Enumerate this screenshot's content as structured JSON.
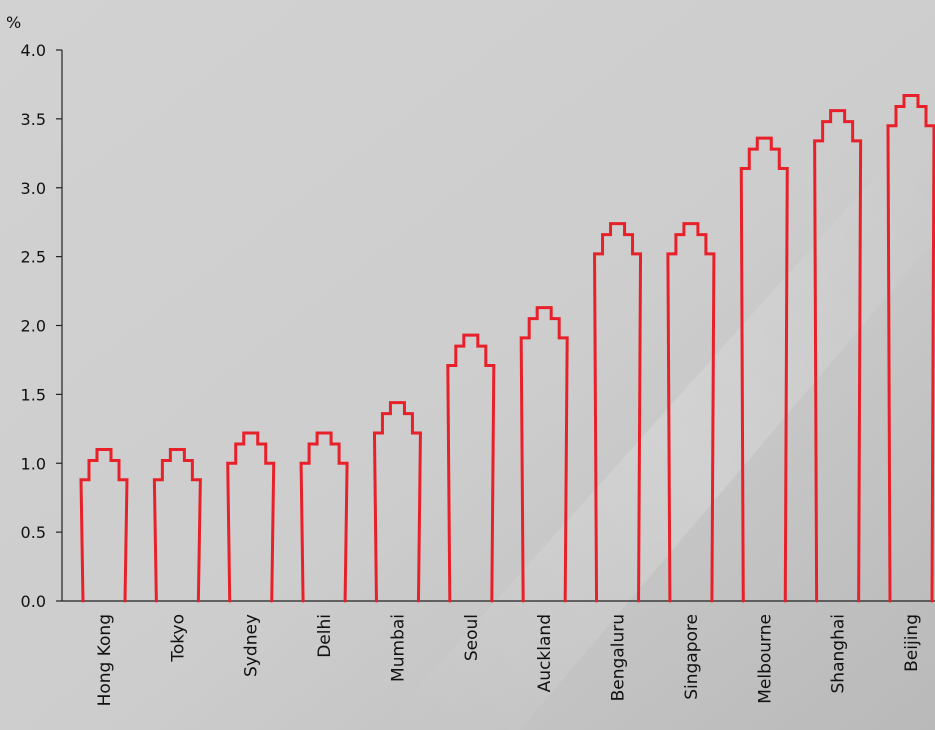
{
  "chart_data": {
    "type": "bar",
    "y_unit": "%",
    "ylim": [
      0,
      4.0
    ],
    "y_ticks": [
      "0.0",
      "0.5",
      "1.0",
      "1.5",
      "2.0",
      "2.5",
      "3.0",
      "3.5",
      "4.0"
    ],
    "categories": [
      "Hong Kong",
      "Tokyo",
      "Sydney",
      "Delhi",
      "Mumbai",
      "Seoul",
      "Auckland",
      "Bengaluru",
      "Singapore",
      "Melbourne",
      "Shanghai",
      "Beijing"
    ],
    "values": [
      1.1,
      1.1,
      1.22,
      1.22,
      1.44,
      1.93,
      2.13,
      2.74,
      2.74,
      3.36,
      3.56,
      3.67
    ],
    "bar_style": "building-silhouette outline",
    "series_color": "#e8202a",
    "grid": false,
    "legend": "none"
  }
}
